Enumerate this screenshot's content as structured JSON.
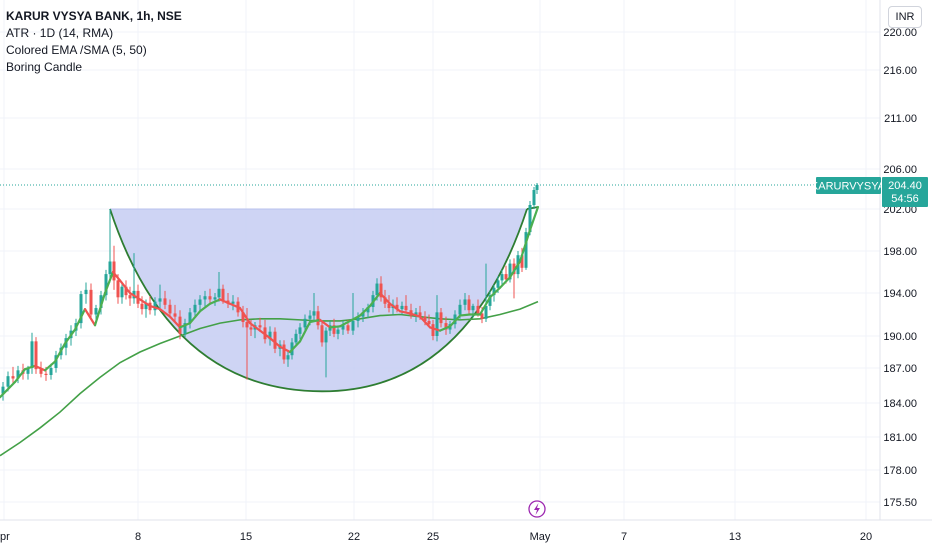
{
  "header": {
    "symbol_title": "KARUR VYSYA BANK, 1h, NSE",
    "indicators": [
      "ATR · 1D (14, RMA)",
      "Colored EMA /SMA (5, 50)",
      "Boring Candle"
    ],
    "currency_button": "INR"
  },
  "colors": {
    "up": "#26a69a",
    "down": "#ef5350",
    "ema": "#4caf50",
    "sma": "#43a047",
    "cup_fill": "#c5cdf2",
    "cup_stroke": "#2e7d32",
    "price_tag": "#26a69a"
  },
  "chart_data": {
    "type": "candlestick",
    "symbol": "KARURVYSYA",
    "interval": "1h",
    "exchange": "NSE",
    "y_ticks": [
      175.5,
      178.0,
      181.0,
      184.0,
      187.0,
      190.0,
      194.0,
      198.0,
      202.0,
      206.0,
      211.0,
      216.0,
      220.0
    ],
    "y_tick_labels": [
      "175.50",
      "178.00",
      "181.00",
      "184.00",
      "187.00",
      "190.00",
      "194.00",
      "198.00",
      "202.00",
      "206.00",
      "211.00",
      "216.00",
      "220.00"
    ],
    "x_tick_labels": [
      "pr",
      "8",
      "15",
      "22",
      "25",
      "May",
      "7",
      "13",
      "20"
    ],
    "last_price_label": "204.40",
    "countdown_label": "54:56",
    "symbol_tag": "KARURVYSYA",
    "sma_series": [
      [
        0,
        179.3
      ],
      [
        20,
        180.5
      ],
      [
        40,
        181.8
      ],
      [
        60,
        183.2
      ],
      [
        80,
        184.8
      ],
      [
        100,
        186.2
      ],
      [
        120,
        187.5
      ],
      [
        140,
        188.5
      ],
      [
        160,
        189.3
      ],
      [
        180,
        190.0
      ],
      [
        200,
        190.7
      ],
      [
        220,
        191.2
      ],
      [
        240,
        191.5
      ],
      [
        260,
        191.6
      ],
      [
        280,
        191.6
      ],
      [
        300,
        191.5
      ],
      [
        320,
        191.4
      ],
      [
        340,
        191.4
      ],
      [
        360,
        191.6
      ],
      [
        380,
        191.9
      ],
      [
        400,
        192.0
      ],
      [
        420,
        191.8
      ],
      [
        440,
        191.6
      ],
      [
        460,
        191.5
      ],
      [
        480,
        191.6
      ],
      [
        500,
        192.0
      ],
      [
        520,
        192.5
      ],
      [
        538,
        193.2
      ]
    ],
    "ema_series": [
      [
        0,
        184.5
      ],
      [
        15,
        185.8
      ],
      [
        25,
        186.9
      ],
      [
        35,
        187.2
      ],
      [
        45,
        186.8
      ],
      [
        55,
        187.6
      ],
      [
        65,
        189.3
      ],
      [
        75,
        190.6
      ],
      [
        85,
        192.5
      ],
      [
        95,
        191.0
      ],
      [
        105,
        194.0
      ],
      [
        113,
        196.0
      ],
      [
        120,
        195.2
      ],
      [
        130,
        194.0
      ],
      [
        140,
        193.4
      ],
      [
        150,
        192.8
      ],
      [
        160,
        192.5
      ],
      [
        170,
        191.8
      ],
      [
        180,
        190.8
      ],
      [
        190,
        191.2
      ],
      [
        200,
        192.3
      ],
      [
        210,
        193.0
      ],
      [
        220,
        193.4
      ],
      [
        230,
        193.0
      ],
      [
        240,
        192.6
      ],
      [
        250,
        191.2
      ],
      [
        260,
        190.5
      ],
      [
        270,
        189.8
      ],
      [
        280,
        189.0
      ],
      [
        290,
        188.5
      ],
      [
        300,
        189.5
      ],
      [
        310,
        191.3
      ],
      [
        320,
        191.5
      ],
      [
        330,
        190.8
      ],
      [
        340,
        190.9
      ],
      [
        350,
        191.4
      ],
      [
        360,
        191.9
      ],
      [
        370,
        192.8
      ],
      [
        380,
        194.0
      ],
      [
        390,
        193.0
      ],
      [
        400,
        192.3
      ],
      [
        410,
        192.1
      ],
      [
        420,
        191.8
      ],
      [
        430,
        190.8
      ],
      [
        440,
        190.5
      ],
      [
        450,
        190.9
      ],
      [
        460,
        191.9
      ],
      [
        470,
        192.0
      ],
      [
        480,
        192.0
      ],
      [
        490,
        193.6
      ],
      [
        500,
        194.5
      ],
      [
        510,
        195.5
      ],
      [
        520,
        197.0
      ],
      [
        530,
        200.0
      ],
      [
        538,
        202.2
      ]
    ],
    "candles": [
      [
        3,
        184.8,
        185.8,
        184.2,
        185.4
      ],
      [
        8,
        185.4,
        186.7,
        185.0,
        186.3
      ],
      [
        13,
        186.3,
        187.1,
        185.6,
        186.1
      ],
      [
        18,
        186.1,
        187.2,
        185.7,
        186.8
      ],
      [
        23,
        186.8,
        187.4,
        186.0,
        186.5
      ],
      [
        28,
        186.5,
        187.2,
        186.0,
        187.0
      ],
      [
        32,
        187.0,
        190.3,
        186.5,
        189.5
      ],
      [
        36,
        189.5,
        189.9,
        186.5,
        186.9
      ],
      [
        41,
        186.9,
        187.6,
        186.2,
        186.5
      ],
      [
        46,
        186.5,
        187.1,
        185.9,
        186.4
      ],
      [
        51,
        186.4,
        187.4,
        186.0,
        187.0
      ],
      [
        56,
        187.0,
        188.6,
        186.6,
        188.2
      ],
      [
        61,
        188.2,
        189.3,
        187.8,
        188.9
      ],
      [
        66,
        188.9,
        190.2,
        188.2,
        189.8
      ],
      [
        71,
        189.8,
        191.0,
        189.1,
        190.5
      ],
      [
        76,
        190.5,
        191.6,
        190.0,
        191.2
      ],
      [
        81,
        191.2,
        194.2,
        190.7,
        193.9
      ],
      [
        86,
        193.9,
        195.0,
        193.0,
        194.3
      ],
      [
        91,
        194.3,
        194.9,
        191.6,
        192.0
      ],
      [
        96,
        192.0,
        192.9,
        191.2,
        192.6
      ],
      [
        101,
        192.6,
        194.2,
        192.0,
        193.8
      ],
      [
        106,
        193.8,
        196.2,
        193.3,
        195.8
      ],
      [
        110,
        195.8,
        202.0,
        195.0,
        197.0
      ],
      [
        114,
        197.0,
        198.5,
        194.3,
        195.2
      ],
      [
        118,
        195.2,
        195.8,
        193.0,
        193.6
      ],
      [
        122,
        193.6,
        195.0,
        193.0,
        194.6
      ],
      [
        126,
        194.6,
        195.2,
        193.4,
        193.8
      ],
      [
        130,
        193.8,
        194.6,
        192.8,
        193.5
      ],
      [
        134,
        193.5,
        197.8,
        193.0,
        194.2
      ],
      [
        138,
        194.2,
        194.8,
        192.6,
        193.0
      ],
      [
        142,
        193.0,
        193.7,
        192.0,
        192.5
      ],
      [
        146,
        192.5,
        193.4,
        191.7,
        193.1
      ],
      [
        150,
        193.1,
        193.7,
        192.0,
        192.4
      ],
      [
        155,
        192.4,
        193.6,
        191.9,
        193.2
      ],
      [
        160,
        193.2,
        194.8,
        192.6,
        193.5
      ],
      [
        165,
        193.5,
        194.2,
        192.5,
        192.9
      ],
      [
        170,
        192.9,
        193.4,
        191.7,
        192.1
      ],
      [
        175,
        192.1,
        192.9,
        191.4,
        191.8
      ],
      [
        180,
        191.8,
        192.4,
        189.7,
        190.2
      ],
      [
        185,
        190.2,
        191.6,
        189.9,
        191.2
      ],
      [
        190,
        191.2,
        192.6,
        190.7,
        192.2
      ],
      [
        195,
        192.2,
        193.4,
        191.7,
        192.9
      ],
      [
        200,
        192.9,
        193.8,
        192.3,
        193.4
      ],
      [
        205,
        193.4,
        194.2,
        192.7,
        193.7
      ],
      [
        210,
        193.7,
        194.4,
        193.0,
        193.4
      ],
      [
        215,
        193.4,
        194.0,
        192.8,
        193.6
      ],
      [
        219,
        193.6,
        196.0,
        193.2,
        194.4
      ],
      [
        223,
        194.4,
        194.8,
        193.0,
        193.3
      ],
      [
        228,
        193.3,
        194.0,
        192.6,
        193.0
      ],
      [
        233,
        193.0,
        193.8,
        192.4,
        193.2
      ],
      [
        238,
        193.2,
        193.6,
        191.8,
        192.2
      ],
      [
        243,
        192.2,
        192.8,
        190.8,
        191.3
      ],
      [
        247,
        191.3,
        192.6,
        186.0,
        190.8
      ],
      [
        251,
        190.8,
        191.5,
        190.0,
        190.6
      ],
      [
        255,
        190.6,
        191.3,
        189.8,
        191.0
      ],
      [
        260,
        191.0,
        191.7,
        190.4,
        190.8
      ],
      [
        265,
        190.8,
        191.5,
        189.3,
        189.7
      ],
      [
        270,
        189.7,
        190.9,
        189.1,
        190.4
      ],
      [
        275,
        190.4,
        190.8,
        188.4,
        188.8
      ],
      [
        280,
        188.8,
        189.6,
        188.1,
        189.2
      ],
      [
        284,
        189.2,
        189.6,
        187.4,
        187.8
      ],
      [
        288,
        187.8,
        188.6,
        187.1,
        188.2
      ],
      [
        292,
        188.2,
        189.8,
        187.8,
        189.4
      ],
      [
        296,
        189.4,
        190.6,
        189.0,
        190.2
      ],
      [
        300,
        190.2,
        191.2,
        189.7,
        190.8
      ],
      [
        305,
        190.8,
        192.0,
        190.4,
        191.6
      ],
      [
        310,
        191.6,
        192.4,
        191.0,
        191.9
      ],
      [
        314,
        191.9,
        194.0,
        191.4,
        192.3
      ],
      [
        318,
        192.3,
        192.8,
        190.6,
        191.0
      ],
      [
        322,
        191.0,
        191.4,
        189.0,
        189.4
      ],
      [
        326,
        189.4,
        190.8,
        186.2,
        190.5
      ],
      [
        330,
        190.5,
        191.4,
        190.0,
        191.0
      ],
      [
        334,
        191.0,
        191.6,
        189.9,
        190.2
      ],
      [
        338,
        190.2,
        190.9,
        189.7,
        190.6
      ],
      [
        343,
        190.6,
        191.4,
        190.1,
        191.0
      ],
      [
        348,
        191.0,
        191.5,
        190.2,
        190.5
      ],
      [
        353,
        190.5,
        194.0,
        190.1,
        191.4
      ],
      [
        358,
        191.4,
        192.2,
        190.8,
        191.8
      ],
      [
        363,
        191.8,
        192.6,
        191.3,
        192.2
      ],
      [
        368,
        192.2,
        193.0,
        191.7,
        192.7
      ],
      [
        373,
        192.7,
        194.2,
        192.2,
        193.8
      ],
      [
        377,
        193.8,
        195.4,
        193.3,
        194.9
      ],
      [
        381,
        194.9,
        195.6,
        193.2,
        193.6
      ],
      [
        385,
        193.6,
        194.3,
        192.6,
        193.0
      ],
      [
        389,
        193.0,
        193.8,
        192.2,
        192.6
      ],
      [
        393,
        192.6,
        193.4,
        192.0,
        192.9
      ],
      [
        397,
        192.9,
        193.6,
        192.2,
        192.5
      ],
      [
        402,
        192.5,
        193.2,
        192.0,
        192.8
      ],
      [
        406,
        192.8,
        193.8,
        192.1,
        192.4
      ],
      [
        411,
        192.4,
        193.0,
        191.6,
        191.9
      ],
      [
        416,
        191.9,
        192.6,
        191.3,
        192.2
      ],
      [
        420,
        192.2,
        192.8,
        191.5,
        191.8
      ],
      [
        425,
        191.8,
        192.3,
        191.0,
        191.4
      ],
      [
        429,
        191.4,
        192.0,
        190.8,
        191.1
      ],
      [
        433,
        191.1,
        191.5,
        189.6,
        190.0
      ],
      [
        437,
        190.0,
        193.8,
        189.5,
        192.2
      ],
      [
        441,
        192.2,
        192.6,
        190.8,
        191.2
      ],
      [
        446,
        191.2,
        191.8,
        190.1,
        190.6
      ],
      [
        450,
        190.6,
        191.4,
        190.2,
        191.1
      ],
      [
        455,
        191.1,
        192.4,
        190.7,
        192.0
      ],
      [
        460,
        192.0,
        193.4,
        191.6,
        192.9
      ],
      [
        465,
        192.9,
        194.0,
        192.4,
        193.4
      ],
      [
        469,
        193.4,
        193.8,
        192.0,
        192.4
      ],
      [
        473,
        192.4,
        193.0,
        191.7,
        192.8
      ],
      [
        478,
        192.8,
        193.4,
        191.8,
        192.1
      ],
      [
        482,
        192.1,
        192.7,
        191.2,
        191.6
      ],
      [
        486,
        191.6,
        196.8,
        191.3,
        192.8
      ],
      [
        490,
        192.8,
        194.2,
        192.4,
        193.8
      ],
      [
        494,
        193.8,
        194.8,
        193.2,
        194.5
      ],
      [
        498,
        194.5,
        195.6,
        194.0,
        195.2
      ],
      [
        502,
        195.2,
        196.2,
        194.6,
        195.8
      ],
      [
        506,
        195.8,
        196.6,
        194.9,
        195.3
      ],
      [
        510,
        195.3,
        197.2,
        195.0,
        196.8
      ],
      [
        514,
        196.8,
        197.3,
        193.5,
        195.8
      ],
      [
        518,
        195.8,
        198.0,
        195.4,
        197.6
      ],
      [
        522,
        197.6,
        198.3,
        196.0,
        196.4
      ],
      [
        526,
        196.4,
        200.2,
        196.2,
        199.8
      ],
      [
        530,
        199.8,
        202.8,
        199.5,
        202.4
      ],
      [
        534,
        202.4,
        204.2,
        202.0,
        203.9
      ],
      [
        537,
        203.9,
        204.6,
        203.5,
        204.4
      ]
    ],
    "cup_pattern": {
      "top_left": [
        110,
        202.0
      ],
      "top_right": [
        527,
        202.0
      ],
      "bottom": [
        322,
        185.0
      ]
    }
  }
}
